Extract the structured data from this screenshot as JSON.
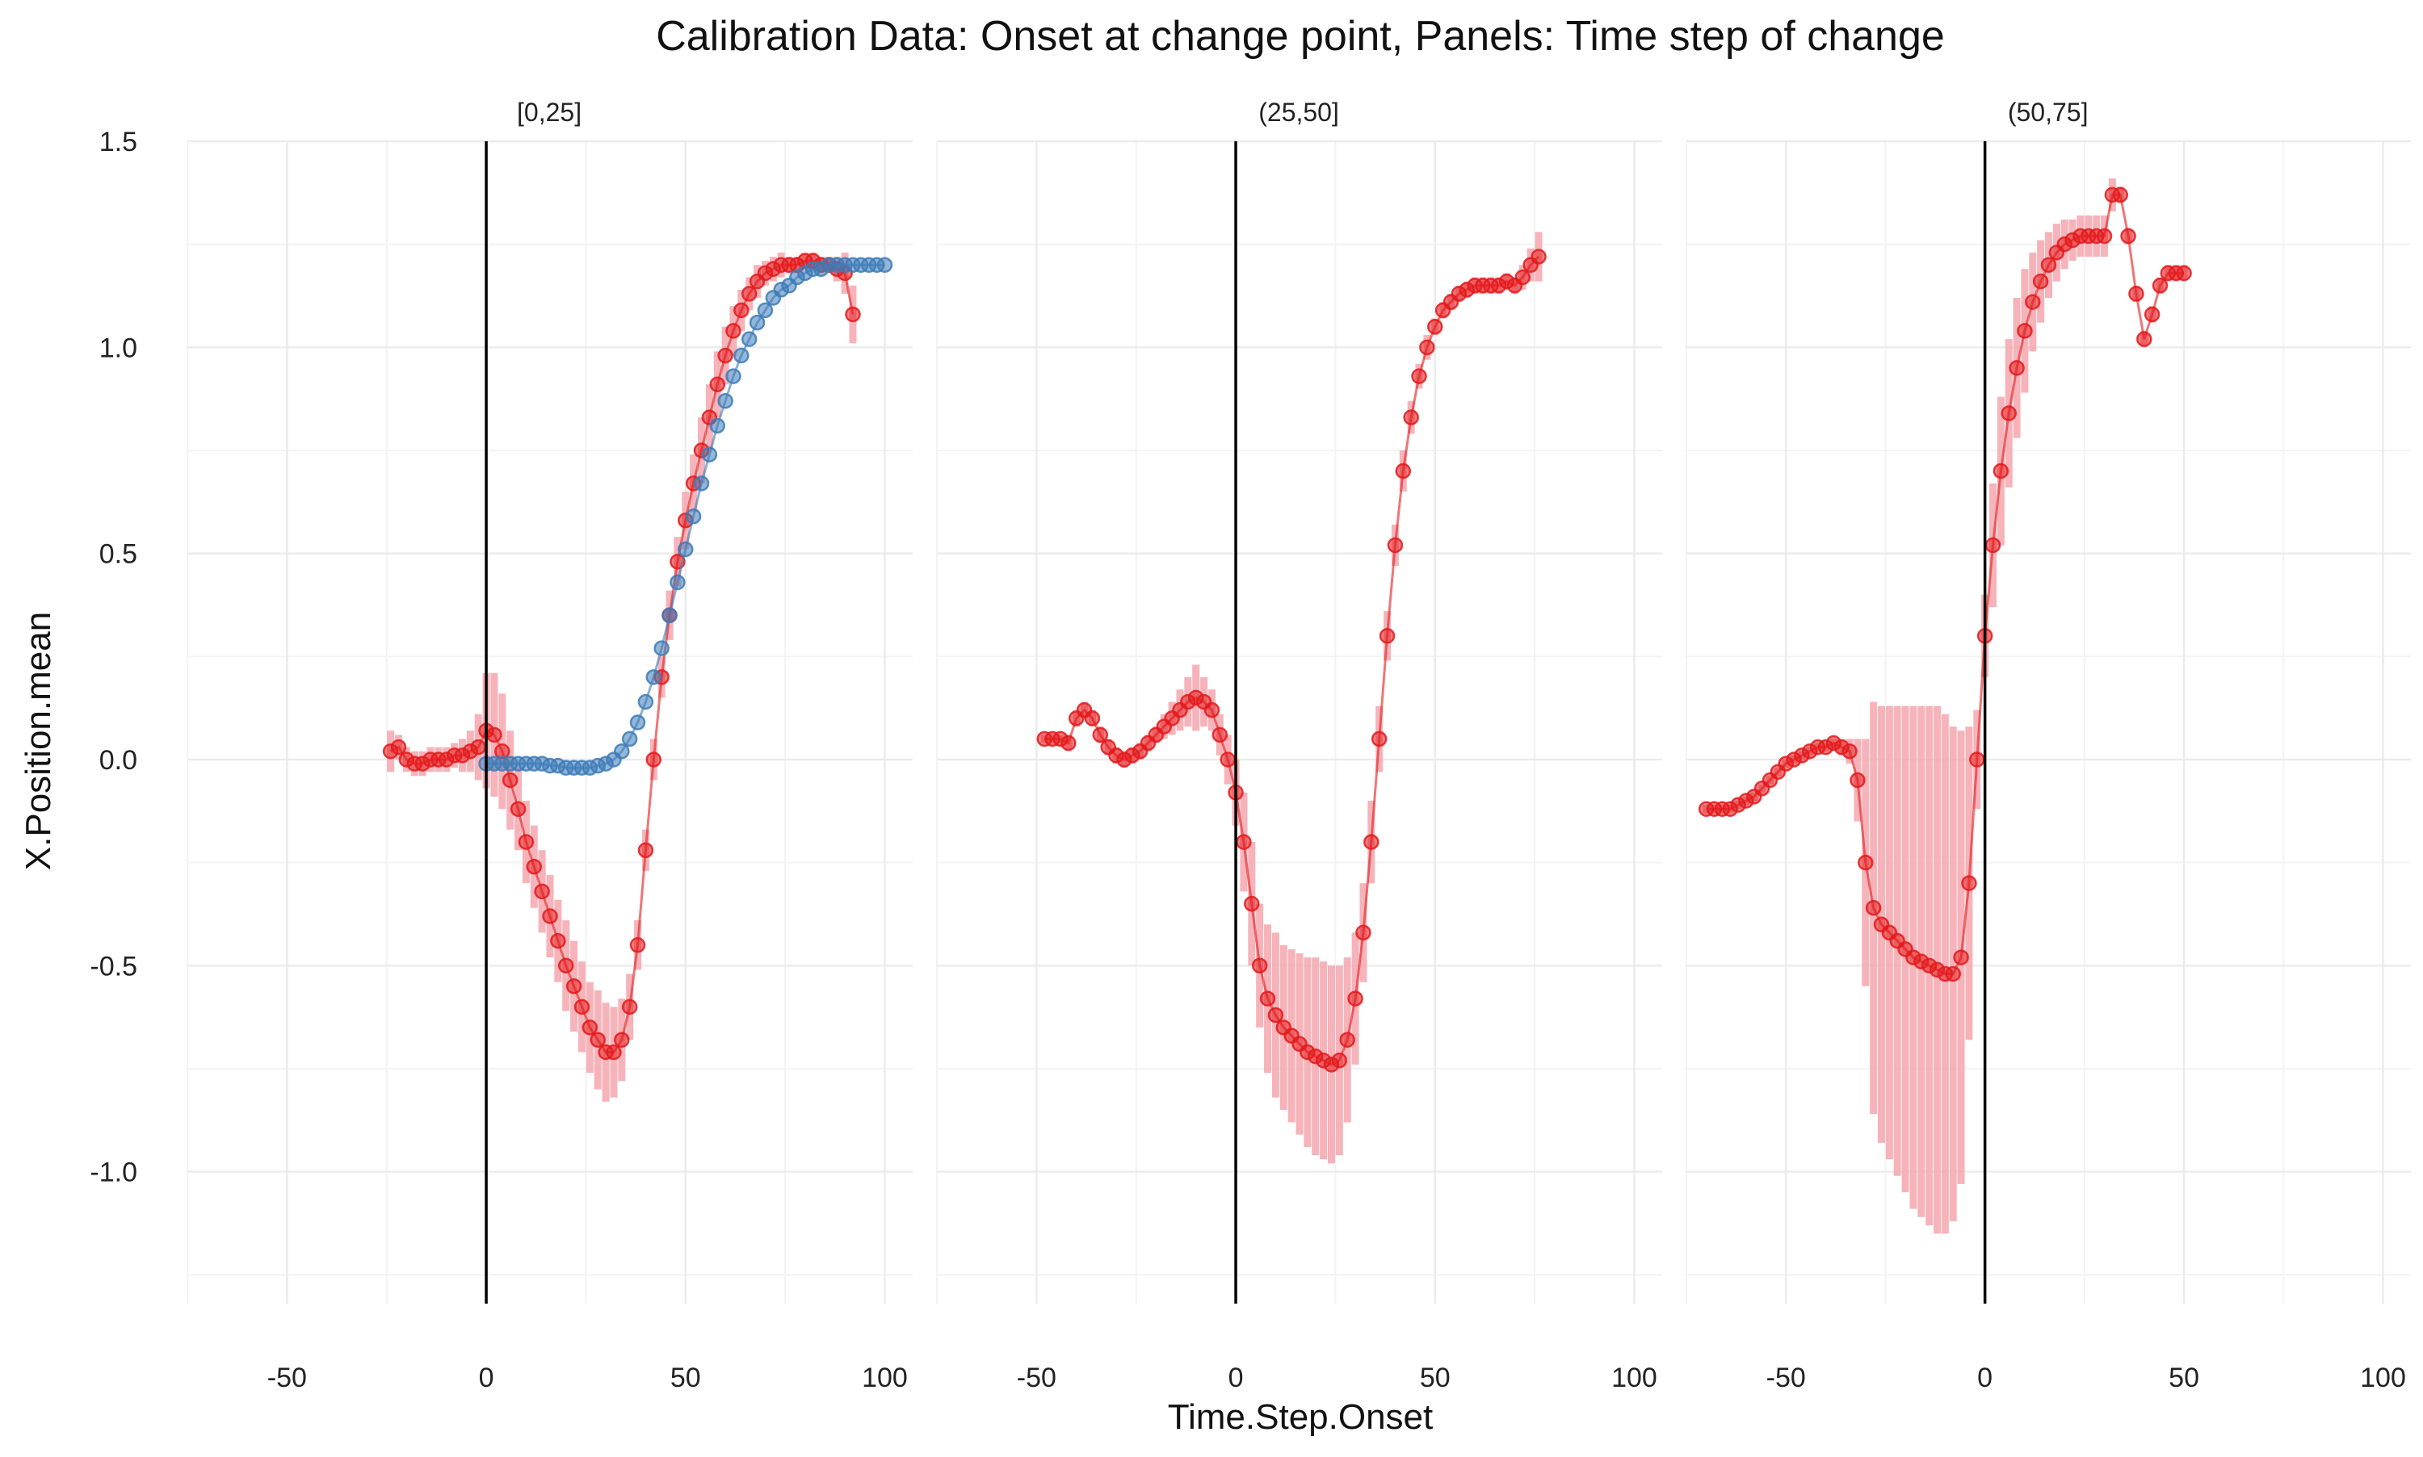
{
  "chart_data": {
    "type": "scatter",
    "title": "Calibration Data: Onset at change point, Panels: Time step of change",
    "xlabel": "Time.Step.Onset",
    "ylabel": "X.Position.mean",
    "xlim": [
      -75,
      107
    ],
    "ylim": [
      -1.32,
      1.5
    ],
    "x_ticks": [
      -50,
      0,
      50,
      100
    ],
    "x_tick_labels": [
      "-50",
      "0",
      "50",
      "100"
    ],
    "y_ticks": [
      1.5,
      1.0,
      0.5,
      0.0,
      -0.5,
      -1.0
    ],
    "y_tick_labels": [
      "1.5",
      "1.0",
      "0.5",
      "0.0",
      "-0.5",
      "-1.0"
    ],
    "grid": true,
    "vline_x": 0,
    "colors": {
      "red": "#e31a1c",
      "blue": "#3d7bb8",
      "band": "#f4a6ae",
      "grid": "#ebebeb"
    },
    "panels": [
      {
        "label": "[0,25]",
        "series": [
          {
            "color": "red",
            "x": [
              -24,
              -22,
              -20,
              -18,
              -16,
              -14,
              -12,
              -10,
              -8,
              -6,
              -4,
              -2,
              0,
              2,
              4,
              6,
              8,
              10,
              12,
              14,
              16,
              18,
              20,
              22,
              24,
              26,
              28,
              30,
              32,
              34,
              36,
              38,
              40,
              42,
              44,
              46,
              48,
              50,
              52,
              54,
              56,
              58,
              60,
              62,
              64,
              66,
              68,
              70,
              72,
              74,
              76,
              78,
              80,
              82,
              84,
              86,
              88,
              90,
              92
            ],
            "y": [
              0.02,
              0.03,
              0.0,
              -0.01,
              -0.01,
              0.0,
              0.0,
              0.0,
              0.01,
              0.01,
              0.02,
              0.03,
              0.07,
              0.06,
              0.02,
              -0.05,
              -0.12,
              -0.2,
              -0.26,
              -0.32,
              -0.38,
              -0.44,
              -0.5,
              -0.55,
              -0.6,
              -0.65,
              -0.68,
              -0.71,
              -0.71,
              -0.68,
              -0.6,
              -0.45,
              -0.22,
              0.0,
              0.2,
              0.35,
              0.48,
              0.58,
              0.67,
              0.75,
              0.83,
              0.91,
              0.98,
              1.04,
              1.09,
              1.13,
              1.16,
              1.18,
              1.19,
              1.2,
              1.2,
              1.2,
              1.21,
              1.21,
              1.2,
              1.2,
              1.19,
              1.18,
              1.08
            ],
            "err": [
              0.05,
              0.03,
              0.03,
              0.03,
              0.03,
              0.03,
              0.03,
              0.03,
              0.03,
              0.04,
              0.05,
              0.08,
              0.14,
              0.15,
              0.14,
              0.12,
              0.1,
              0.1,
              0.1,
              0.1,
              0.1,
              0.1,
              0.11,
              0.11,
              0.11,
              0.11,
              0.12,
              0.12,
              0.11,
              0.1,
              0.08,
              0.06,
              0.05,
              0.05,
              0.05,
              0.06,
              0.06,
              0.07,
              0.07,
              0.08,
              0.08,
              0.08,
              0.07,
              0.06,
              0.05,
              0.04,
              0.04,
              0.03,
              0.03,
              0.03,
              0.02,
              0.02,
              0.02,
              0.02,
              0.02,
              0.02,
              0.03,
              0.05,
              0.07
            ]
          },
          {
            "color": "blue",
            "x": [
              0,
              2,
              4,
              6,
              8,
              10,
              12,
              14,
              16,
              18,
              20,
              22,
              24,
              26,
              28,
              30,
              32,
              34,
              36,
              38,
              40,
              42,
              44,
              46,
              48,
              50,
              52,
              54,
              56,
              58,
              60,
              62,
              64,
              66,
              68,
              70,
              72,
              74,
              76,
              78,
              80,
              82,
              84,
              86,
              88,
              90,
              92,
              94,
              96,
              98,
              100
            ],
            "y": [
              -0.01,
              -0.01,
              -0.01,
              -0.01,
              -0.01,
              -0.01,
              -0.01,
              -0.01,
              -0.015,
              -0.015,
              -0.02,
              -0.02,
              -0.02,
              -0.02,
              -0.015,
              -0.01,
              0.0,
              0.02,
              0.05,
              0.09,
              0.14,
              0.2,
              0.27,
              0.35,
              0.43,
              0.51,
              0.59,
              0.67,
              0.74,
              0.81,
              0.87,
              0.93,
              0.98,
              1.02,
              1.06,
              1.09,
              1.12,
              1.14,
              1.15,
              1.17,
              1.18,
              1.19,
              1.19,
              1.2,
              1.2,
              1.2,
              1.2,
              1.2,
              1.2,
              1.2,
              1.2
            ],
            "err": []
          }
        ]
      },
      {
        "label": "(25,50]",
        "series": [
          {
            "color": "red",
            "x": [
              -48,
              -46,
              -44,
              -42,
              -40,
              -38,
              -36,
              -34,
              -32,
              -30,
              -28,
              -26,
              -24,
              -22,
              -20,
              -18,
              -16,
              -14,
              -12,
              -10,
              -8,
              -6,
              -4,
              -2,
              0,
              2,
              4,
              6,
              8,
              10,
              12,
              14,
              16,
              18,
              20,
              22,
              24,
              26,
              28,
              30,
              32,
              34,
              36,
              38,
              40,
              42,
              44,
              46,
              48,
              50,
              52,
              54,
              56,
              58,
              60,
              62,
              64,
              66,
              68,
              70,
              72,
              74,
              76
            ],
            "y": [
              0.05,
              0.05,
              0.05,
              0.04,
              0.1,
              0.12,
              0.1,
              0.06,
              0.03,
              0.01,
              0.0,
              0.01,
              0.02,
              0.04,
              0.06,
              0.08,
              0.1,
              0.12,
              0.14,
              0.15,
              0.14,
              0.12,
              0.06,
              0.0,
              -0.08,
              -0.2,
              -0.35,
              -0.5,
              -0.58,
              -0.62,
              -0.65,
              -0.67,
              -0.69,
              -0.71,
              -0.72,
              -0.73,
              -0.74,
              -0.73,
              -0.68,
              -0.58,
              -0.42,
              -0.2,
              0.05,
              0.3,
              0.52,
              0.7,
              0.83,
              0.93,
              1.0,
              1.05,
              1.09,
              1.11,
              1.13,
              1.14,
              1.15,
              1.15,
              1.15,
              1.15,
              1.16,
              1.15,
              1.17,
              1.2,
              1.22
            ],
            "err": [
              0.01,
              0.01,
              0.01,
              0.02,
              0.02,
              0.02,
              0.02,
              0.02,
              0.02,
              0.02,
              0.02,
              0.02,
              0.02,
              0.02,
              0.02,
              0.03,
              0.04,
              0.05,
              0.06,
              0.08,
              0.06,
              0.05,
              0.05,
              0.06,
              0.08,
              0.12,
              0.15,
              0.15,
              0.18,
              0.2,
              0.2,
              0.21,
              0.22,
              0.23,
              0.24,
              0.24,
              0.24,
              0.23,
              0.2,
              0.16,
              0.12,
              0.1,
              0.08,
              0.06,
              0.05,
              0.05,
              0.04,
              0.03,
              0.03,
              0.02,
              0.02,
              0.02,
              0.02,
              0.02,
              0.02,
              0.02,
              0.02,
              0.02,
              0.02,
              0.02,
              0.03,
              0.04,
              0.06
            ]
          }
        ]
      },
      {
        "label": "(50,75]",
        "series": [
          {
            "color": "red",
            "x": [
              -70,
              -68,
              -66,
              -64,
              -62,
              -60,
              -58,
              -56,
              -54,
              -52,
              -50,
              -48,
              -46,
              -44,
              -42,
              -40,
              -38,
              -36,
              -34,
              -32,
              -30,
              -28,
              -26,
              -24,
              -22,
              -20,
              -18,
              -16,
              -14,
              -12,
              -10,
              -8,
              -6,
              -4,
              -2,
              0,
              2,
              4,
              6,
              8,
              10,
              12,
              14,
              16,
              18,
              20,
              22,
              24,
              26,
              28,
              30,
              32,
              34,
              36,
              38,
              40,
              42,
              44,
              46,
              48,
              50
            ],
            "y": [
              -0.12,
              -0.12,
              -0.12,
              -0.12,
              -0.11,
              -0.1,
              -0.09,
              -0.07,
              -0.05,
              -0.03,
              -0.01,
              0.0,
              0.01,
              0.02,
              0.03,
              0.03,
              0.04,
              0.03,
              0.02,
              -0.05,
              -0.25,
              -0.36,
              -0.4,
              -0.42,
              -0.44,
              -0.46,
              -0.48,
              -0.49,
              -0.5,
              -0.51,
              -0.52,
              -0.52,
              -0.48,
              -0.3,
              0.0,
              0.3,
              0.52,
              0.7,
              0.84,
              0.95,
              1.04,
              1.11,
              1.16,
              1.2,
              1.23,
              1.25,
              1.26,
              1.27,
              1.27,
              1.27,
              1.27,
              1.37,
              1.37,
              1.27,
              1.13,
              1.02,
              1.08,
              1.15,
              1.18,
              1.18,
              1.18
            ],
            "err": [
              0.01,
              0.01,
              0.01,
              0.01,
              0.01,
              0.01,
              0.01,
              0.01,
              0.01,
              0.01,
              0.01,
              0.01,
              0.01,
              0.01,
              0.01,
              0.01,
              0.01,
              0.02,
              0.03,
              0.1,
              0.3,
              0.5,
              0.53,
              0.55,
              0.57,
              0.59,
              0.61,
              0.62,
              0.63,
              0.64,
              0.63,
              0.6,
              0.55,
              0.38,
              0.12,
              0.1,
              0.15,
              0.18,
              0.18,
              0.17,
              0.15,
              0.12,
              0.1,
              0.08,
              0.07,
              0.06,
              0.05,
              0.05,
              0.05,
              0.05,
              0.05,
              0.04,
              0.02,
              0.02,
              0.02,
              0.02,
              0.02,
              0.02,
              0.02,
              0.02,
              0.02
            ]
          }
        ]
      }
    ]
  }
}
